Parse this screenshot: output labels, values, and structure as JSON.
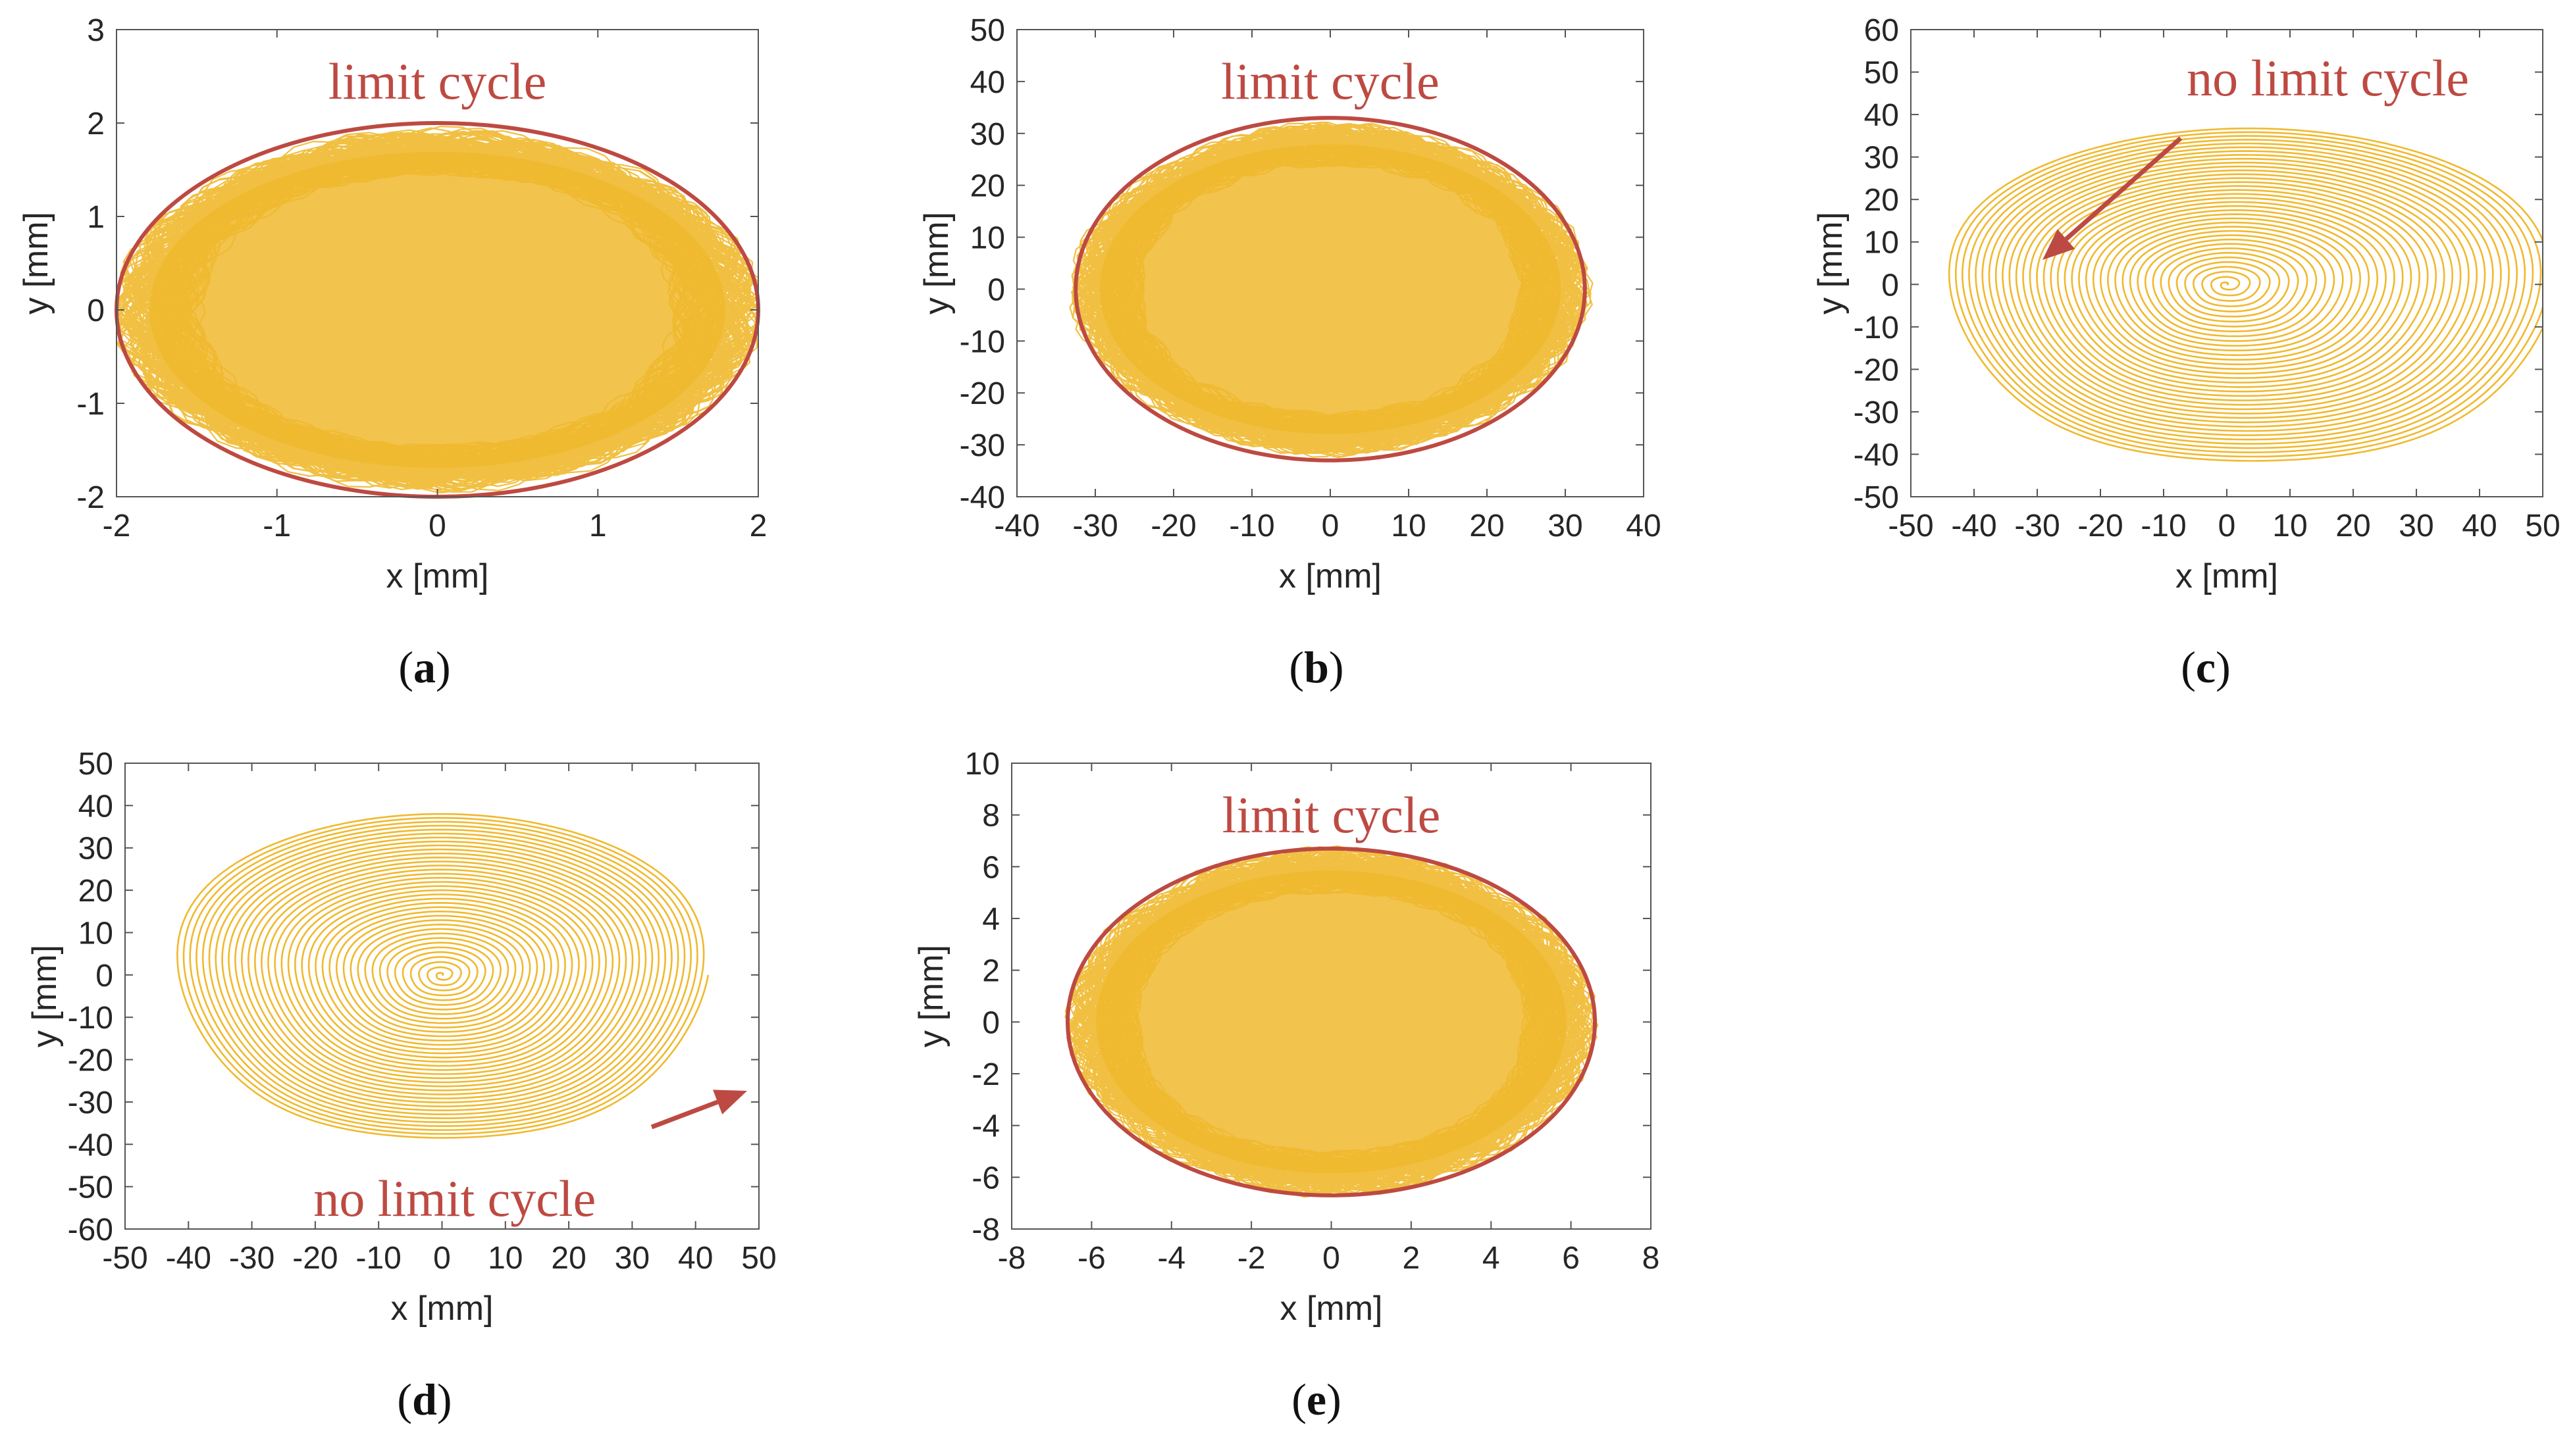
{
  "colors": {
    "trajectory": "#f0b92e",
    "annotation": "#bd4a42",
    "axis": "#262626",
    "background": "#ffffff"
  },
  "chart_data": [
    {
      "panel": "a",
      "caption": "(a)",
      "type": "line",
      "pattern": "dense",
      "xlabel": "x [mm]",
      "ylabel": "y [mm]",
      "xlim": [
        -2,
        2
      ],
      "ylim": [
        -2,
        3
      ],
      "xticks": [
        -2,
        -1,
        0,
        1,
        2
      ],
      "yticks": [
        -2,
        -1,
        0,
        1,
        2,
        3
      ],
      "series": [
        {
          "name": "trajectory",
          "amplitude_x": 1.95,
          "amplitude_y": 1.88
        }
      ],
      "limit_cycle": {
        "rx": 2.0,
        "ry": 2.0
      },
      "annotation": {
        "text": "limit cycle",
        "position": "top-center"
      }
    },
    {
      "panel": "b",
      "caption": "(b)",
      "type": "line",
      "pattern": "dense",
      "xlabel": "x [mm]",
      "ylabel": "y [mm]",
      "xlim": [
        -40,
        40
      ],
      "ylim": [
        -40,
        50
      ],
      "xticks": [
        -40,
        -30,
        -20,
        -10,
        0,
        10,
        20,
        30,
        40
      ],
      "yticks": [
        -40,
        -30,
        -20,
        -10,
        0,
        10,
        20,
        30,
        40,
        50
      ],
      "series": [
        {
          "name": "trajectory",
          "amplitude_x": 32,
          "amplitude_y": 31
        }
      ],
      "limit_cycle": {
        "rx": 32.5,
        "ry": 33
      },
      "annotation": {
        "text": "limit cycle",
        "position": "top-center"
      }
    },
    {
      "panel": "c",
      "caption": "(c)",
      "type": "line",
      "pattern": "spiral-out",
      "xlabel": "x [mm]",
      "ylabel": "y [mm]",
      "xlim": [
        -50,
        50
      ],
      "ylim": [
        -50,
        60
      ],
      "xticks": [
        -50,
        -40,
        -30,
        -20,
        -10,
        0,
        10,
        20,
        30,
        40,
        50
      ],
      "yticks": [
        -50,
        -40,
        -30,
        -20,
        -10,
        0,
        10,
        20,
        30,
        40,
        50,
        60
      ],
      "series": [
        {
          "name": "trajectory",
          "max_radius_x": 48,
          "max_radius_y": 44
        }
      ],
      "annotation": {
        "text": "no limit cycle",
        "position": "top-right",
        "arrow": "down-left"
      }
    },
    {
      "panel": "d",
      "caption": "(d)",
      "type": "line",
      "pattern": "spiral-out",
      "xlabel": "x [mm]",
      "ylabel": "y [mm]",
      "xlim": [
        -50,
        50
      ],
      "ylim": [
        -60,
        50
      ],
      "xticks": [
        -50,
        -40,
        -30,
        -20,
        -10,
        0,
        10,
        20,
        30,
        40,
        50
      ],
      "yticks": [
        -60,
        -50,
        -40,
        -30,
        -20,
        -10,
        0,
        10,
        20,
        30,
        40,
        50
      ],
      "series": [
        {
          "name": "trajectory",
          "max_radius_x": 42,
          "max_radius_y": 43
        }
      ],
      "annotation": {
        "text": "no limit cycle",
        "position": "bottom-center",
        "arrow": "up-right"
      }
    },
    {
      "panel": "e",
      "caption": "(e)",
      "type": "line",
      "pattern": "dense",
      "xlabel": "x [mm]",
      "ylabel": "y [mm]",
      "xlim": [
        -8,
        8
      ],
      "ylim": [
        -8,
        10
      ],
      "xticks": [
        -8,
        -6,
        -4,
        -2,
        0,
        2,
        4,
        6,
        8
      ],
      "yticks": [
        -8,
        -6,
        -4,
        -2,
        0,
        2,
        4,
        6,
        8,
        10
      ],
      "series": [
        {
          "name": "trajectory",
          "amplitude_x": 6.4,
          "amplitude_y": 6.5
        }
      ],
      "limit_cycle": {
        "rx": 6.6,
        "ry": 6.7
      },
      "annotation": {
        "text": "limit cycle",
        "position": "top-center"
      }
    }
  ]
}
